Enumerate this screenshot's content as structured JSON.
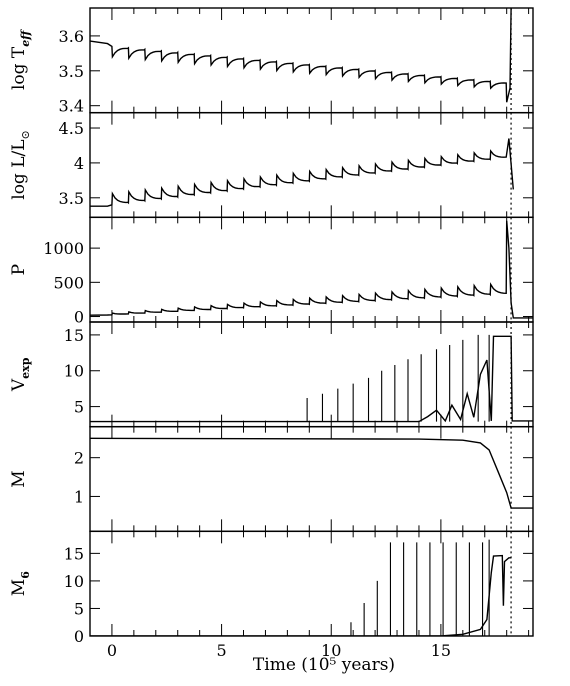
{
  "chart_data": {
    "type": "line",
    "xlabel": "Time (10⁵ years)",
    "xlim": [
      -1,
      19.2
    ],
    "xticks": [
      "0",
      "5",
      "10",
      "15"
    ],
    "xtick_values": [
      0,
      5,
      10,
      15
    ],
    "marker_time": 18.2,
    "panels": [
      {
        "id": "teff",
        "ylabel_main": "log T",
        "ylabel_sub": "eff",
        "ylabel_sub_style": "italic-bold",
        "ylim": [
          3.38,
          3.68
        ],
        "yticks": [
          "3.4",
          "3.5",
          "3.6"
        ],
        "ytick_values": [
          3.4,
          3.5,
          3.6
        ],
        "pulses": {
          "start": 0.0,
          "period": 0.75,
          "count": 24,
          "base_start": 3.57,
          "base_end": 3.47,
          "amp_start": 0.03,
          "amp_end": 0.02,
          "dir": -1
        },
        "points": [
          [
            -1.0,
            3.585
          ],
          [
            -0.2,
            3.578
          ],
          [
            17.6,
            3.45
          ],
          [
            17.9,
            3.42
          ],
          [
            18.0,
            3.41
          ],
          [
            18.15,
            3.45
          ],
          [
            18.2,
            3.68
          ]
        ]
      },
      {
        "id": "lum",
        "ylabel_main": "log L/L",
        "ylabel_sub": "⊙",
        "ylim": [
          3.22,
          4.72
        ],
        "yticks": [
          "3.5",
          "4",
          "4.5"
        ],
        "ytick_values": [
          3.5,
          4.0,
          4.5
        ],
        "pulses": {
          "start": 0.0,
          "period": 0.75,
          "count": 24,
          "base_start": 3.4,
          "base_end": 4.05,
          "amp_start": 0.16,
          "amp_end": 0.12,
          "dir": 1
        },
        "points": [
          [
            -1.0,
            3.38
          ],
          [
            -0.2,
            3.38
          ],
          [
            17.9,
            4.05
          ],
          [
            18.1,
            4.35
          ],
          [
            18.3,
            3.62
          ]
        ]
      },
      {
        "id": "period",
        "ylabel_main": "P",
        "ylabel_sub": "",
        "ylim": [
          -80,
          1450
        ],
        "yticks": [
          "0",
          "500",
          "1000"
        ],
        "ytick_values": [
          0,
          500,
          1000
        ],
        "pulses": {
          "start": 0.0,
          "period": 0.75,
          "count": 24,
          "base_start": 25,
          "base_end": 320,
          "amp_start": 25,
          "amp_end": 150,
          "dir": 1
        },
        "points": [
          [
            -1.0,
            20
          ],
          [
            -0.2,
            22
          ],
          [
            17.2,
            420
          ],
          [
            17.5,
            800
          ],
          [
            17.7,
            550
          ],
          [
            17.85,
            1100
          ],
          [
            18.0,
            1400
          ],
          [
            18.1,
            1000
          ],
          [
            18.2,
            200
          ],
          [
            18.3,
            -20
          ],
          [
            19.2,
            -20
          ]
        ]
      },
      {
        "id": "vexp",
        "ylabel_main": "V",
        "ylabel_sub": "exp",
        "ylabel_sub_style": "bold",
        "ylim": [
          2.2,
          16.8
        ],
        "yticks": [
          "5",
          "10",
          "15"
        ],
        "ytick_values": [
          5,
          10,
          15
        ],
        "spike_base": 2.9,
        "spikes": [
          [
            8.9,
            6.2
          ],
          [
            9.6,
            6.8
          ],
          [
            10.3,
            7.5
          ],
          [
            11.0,
            8.2
          ],
          [
            11.7,
            9.0
          ],
          [
            12.3,
            10.0
          ],
          [
            12.9,
            10.8
          ],
          [
            13.5,
            11.6
          ],
          [
            14.1,
            12.3
          ],
          [
            14.8,
            13.0
          ],
          [
            15.4,
            13.6
          ],
          [
            16.0,
            14.3
          ],
          [
            16.7,
            15.0
          ],
          [
            17.2,
            15.0
          ]
        ],
        "points": [
          [
            -1.0,
            2.9
          ],
          [
            14.0,
            2.9
          ],
          [
            14.4,
            3.6
          ],
          [
            14.8,
            4.5
          ],
          [
            15.2,
            3.0
          ],
          [
            15.5,
            5.2
          ],
          [
            15.9,
            3.2
          ],
          [
            16.2,
            6.8
          ],
          [
            16.5,
            3.5
          ],
          [
            16.8,
            9.5
          ],
          [
            17.1,
            11.5
          ],
          [
            17.3,
            3.0
          ],
          [
            17.4,
            14.8
          ],
          [
            18.2,
            14.8
          ],
          [
            18.25,
            3.0
          ],
          [
            19.2,
            3.0
          ]
        ]
      },
      {
        "id": "mass",
        "ylabel_main": "M",
        "ylabel_sub": "",
        "ylim": [
          0.1,
          2.8
        ],
        "yticks": [
          "1",
          "2"
        ],
        "ytick_values": [
          1,
          2
        ],
        "points": [
          [
            -1.0,
            2.5
          ],
          [
            14.0,
            2.48
          ],
          [
            16.0,
            2.45
          ],
          [
            16.8,
            2.38
          ],
          [
            17.2,
            2.2
          ],
          [
            17.6,
            1.65
          ],
          [
            18.0,
            1.1
          ],
          [
            18.2,
            0.7
          ],
          [
            19.2,
            0.7
          ]
        ]
      },
      {
        "id": "mdot",
        "ylabel_main": "M",
        "ylabel_sub": "6",
        "ylabel_sub_style": "bold",
        "ylim": [
          0,
          19
        ],
        "yticks": [
          "0",
          "5",
          "10",
          "15"
        ],
        "ytick_values": [
          0,
          5,
          10,
          15
        ],
        "spike_base": 0,
        "spikes": [
          [
            10.9,
            2.5
          ],
          [
            11.5,
            6.0
          ],
          [
            12.1,
            10.0
          ],
          [
            12.7,
            17.0
          ],
          [
            13.3,
            17.0
          ],
          [
            13.9,
            17.0
          ],
          [
            14.5,
            17.0
          ],
          [
            15.1,
            17.0
          ],
          [
            15.7,
            17.0
          ],
          [
            16.3,
            17.0
          ],
          [
            16.9,
            17.0
          ],
          [
            17.2,
            17.5
          ]
        ],
        "points": [
          [
            -1.0,
            0
          ],
          [
            15.0,
            0
          ],
          [
            16.0,
            0.3
          ],
          [
            16.8,
            1.2
          ],
          [
            17.1,
            3.0
          ],
          [
            17.3,
            11.5
          ],
          [
            17.4,
            14.5
          ],
          [
            17.8,
            14.6
          ],
          [
            17.85,
            5.5
          ],
          [
            17.9,
            13.5
          ],
          [
            18.1,
            14.2
          ],
          [
            18.2,
            14.2
          ]
        ]
      }
    ]
  }
}
